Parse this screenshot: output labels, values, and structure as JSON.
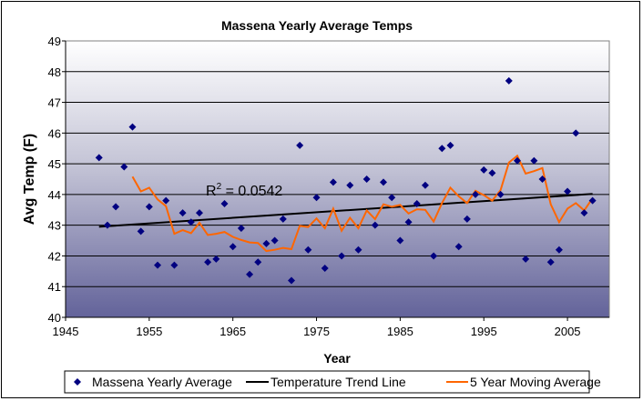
{
  "chart_data": {
    "type": "scatter",
    "title": "Massena Yearly Average Temps",
    "xlabel": "Year",
    "ylabel": "Avg Temp (F)",
    "xlim": [
      1945,
      2010
    ],
    "ylim": [
      40,
      49
    ],
    "xticks": [
      1945,
      1955,
      1965,
      1975,
      1985,
      1995,
      2005
    ],
    "yticks": [
      40,
      41,
      42,
      43,
      44,
      45,
      46,
      47,
      48,
      49
    ],
    "grid": "horizontal",
    "legend_position": "bottom",
    "annotation": {
      "text": "R",
      "superscript": "2",
      "rest": " = 0.0542"
    },
    "series": [
      {
        "name": "Massena Yearly Average",
        "kind": "scatter",
        "color": "#000080",
        "x": [
          1949,
          1950,
          1951,
          1952,
          1953,
          1954,
          1955,
          1956,
          1957,
          1958,
          1959,
          1960,
          1961,
          1962,
          1963,
          1964,
          1965,
          1966,
          1967,
          1968,
          1969,
          1970,
          1971,
          1972,
          1973,
          1974,
          1975,
          1976,
          1977,
          1978,
          1979,
          1980,
          1981,
          1982,
          1983,
          1984,
          1985,
          1986,
          1987,
          1988,
          1989,
          1990,
          1991,
          1992,
          1993,
          1994,
          1995,
          1996,
          1997,
          1998,
          1999,
          2000,
          2001,
          2002,
          2003,
          2004,
          2005,
          2006,
          2007,
          2008
        ],
        "y": [
          45.2,
          43.0,
          43.6,
          44.9,
          46.2,
          42.8,
          43.6,
          41.7,
          43.8,
          41.7,
          43.4,
          43.1,
          43.4,
          41.8,
          41.9,
          43.7,
          42.3,
          42.9,
          41.4,
          41.8,
          42.4,
          42.5,
          43.2,
          41.2,
          45.6,
          42.2,
          43.9,
          41.6,
          44.4,
          42.0,
          44.3,
          42.2,
          44.5,
          43.0,
          44.4,
          43.9,
          42.5,
          43.1,
          43.7,
          44.3,
          42.0,
          45.5,
          45.6,
          42.3,
          43.2,
          44.0,
          44.8,
          44.7,
          44.0,
          47.7,
          45.1,
          41.9,
          45.1,
          44.5,
          41.8,
          42.2,
          44.1,
          46.0,
          43.4,
          43.8
        ]
      },
      {
        "name": "Temperature Trend Line",
        "kind": "line",
        "color": "#000000",
        "x": [
          1949,
          2008
        ],
        "y": [
          42.95,
          44.02
        ]
      },
      {
        "name": "5 Year Moving Average",
        "kind": "line",
        "color": "#FF6600",
        "x": [
          1953,
          1954,
          1955,
          1956,
          1957,
          1958,
          1959,
          1960,
          1961,
          1962,
          1963,
          1964,
          1965,
          1966,
          1967,
          1968,
          1969,
          1970,
          1971,
          1972,
          1973,
          1974,
          1975,
          1976,
          1977,
          1978,
          1979,
          1980,
          1981,
          1982,
          1983,
          1984,
          1985,
          1986,
          1987,
          1988,
          1989,
          1990,
          1991,
          1992,
          1993,
          1994,
          1995,
          1996,
          1997,
          1998,
          1999,
          2000,
          2001,
          2002,
          2003,
          2004,
          2005,
          2006,
          2007,
          2008
        ],
        "y": [
          44.58,
          44.1,
          44.22,
          43.84,
          43.62,
          42.72,
          42.84,
          42.74,
          43.08,
          42.68,
          42.72,
          42.78,
          42.62,
          42.52,
          42.44,
          42.42,
          42.16,
          42.2,
          42.26,
          42.22,
          42.98,
          42.94,
          43.22,
          42.9,
          43.54,
          42.82,
          43.24,
          42.9,
          43.48,
          43.2,
          43.68,
          43.6,
          43.66,
          43.38,
          43.52,
          43.5,
          43.12,
          43.72,
          44.22,
          43.94,
          43.72,
          44.12,
          43.98,
          43.8,
          44.14,
          45.04,
          45.26,
          44.68,
          44.76,
          44.86,
          43.68,
          43.1,
          43.54,
          43.72,
          43.48,
          43.88
        ]
      }
    ]
  }
}
